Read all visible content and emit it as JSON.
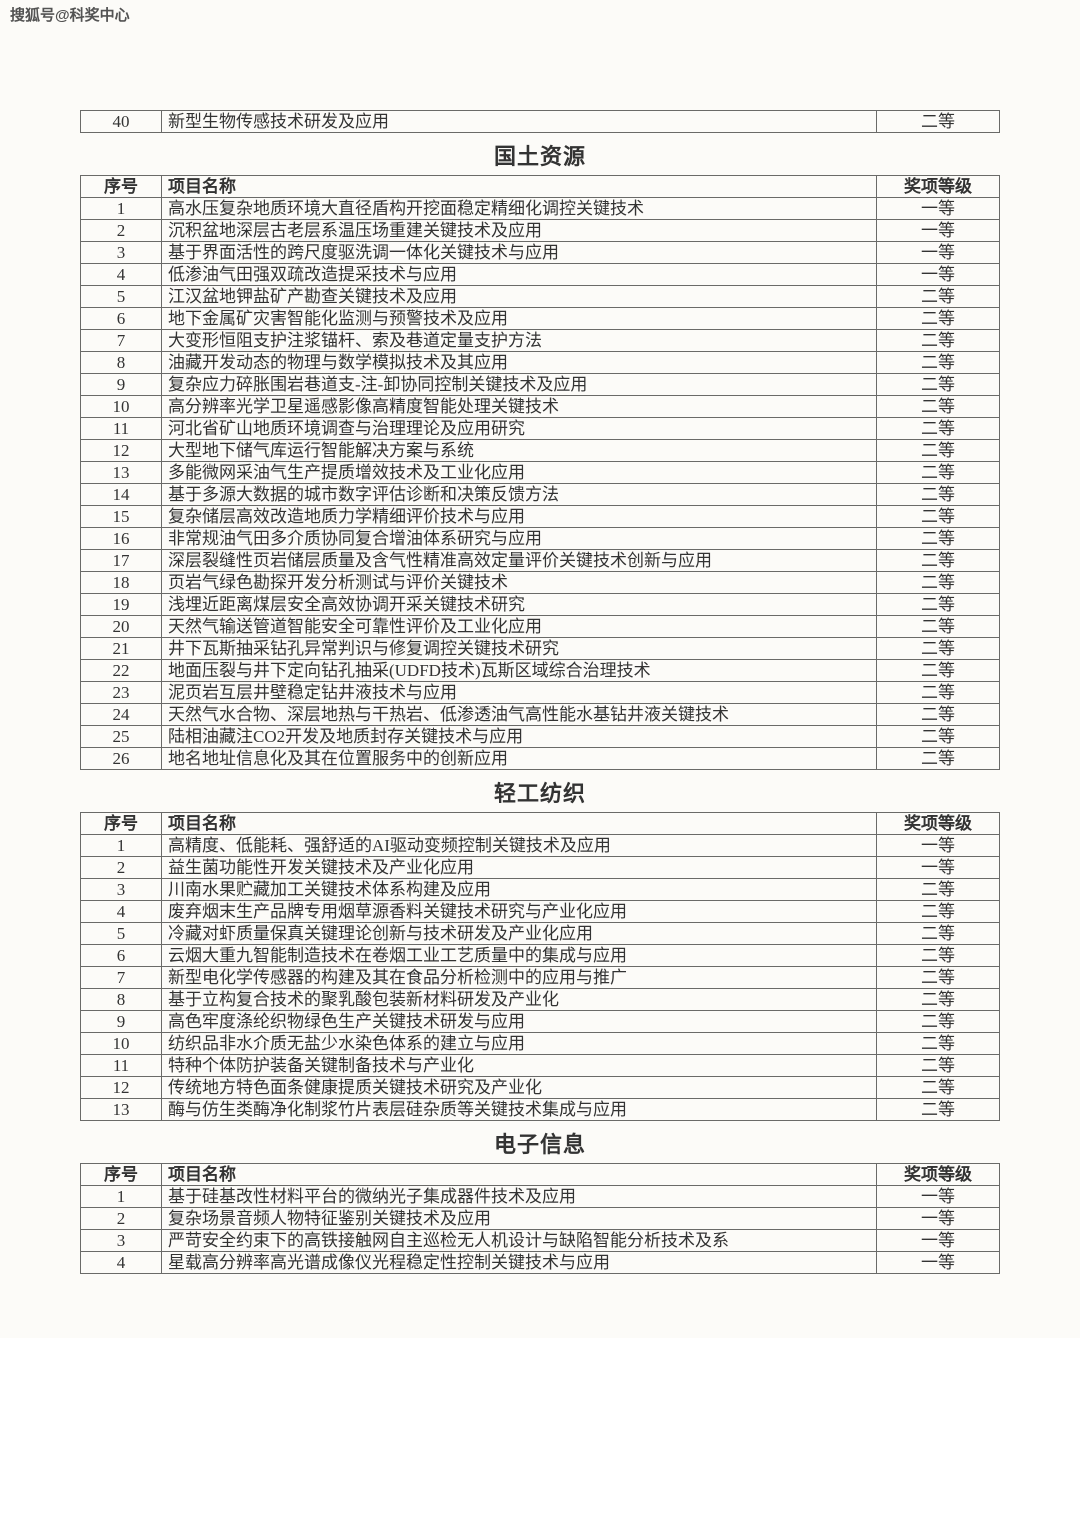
{
  "watermark": "搜狐号@科奖中心",
  "top_row": {
    "num": "40",
    "name": "新型生物传感技术研发及应用",
    "grade": "二等"
  },
  "sections": [
    {
      "title": "国土资源",
      "headers": {
        "num": "序号",
        "name": "项目名称",
        "grade": "奖项等级"
      },
      "rows": [
        {
          "num": "1",
          "name": "高水压复杂地质环境大直径盾构开挖面稳定精细化调控关键技术",
          "grade": "一等"
        },
        {
          "num": "2",
          "name": "沉积盆地深层古老层系温压场重建关键技术及应用",
          "grade": "一等"
        },
        {
          "num": "3",
          "name": "基于界面活性的跨尺度驱洗调一体化关键技术与应用",
          "grade": "一等"
        },
        {
          "num": "4",
          "name": "低渗油气田强双疏改造提采技术与应用",
          "grade": "一等"
        },
        {
          "num": "5",
          "name": "江汉盆地钾盐矿产勘查关键技术及应用",
          "grade": "二等"
        },
        {
          "num": "6",
          "name": "地下金属矿灾害智能化监测与预警技术及应用",
          "grade": "二等"
        },
        {
          "num": "7",
          "name": "大变形恒阻支护注浆锚杆、索及巷道定量支护方法",
          "grade": "二等"
        },
        {
          "num": "8",
          "name": "油藏开发动态的物理与数学模拟技术及其应用",
          "grade": "二等"
        },
        {
          "num": "9",
          "name": "复杂应力碎胀围岩巷道支-注-卸协同控制关键技术及应用",
          "grade": "二等"
        },
        {
          "num": "10",
          "name": "高分辨率光学卫星遥感影像高精度智能处理关键技术",
          "grade": "二等"
        },
        {
          "num": "11",
          "name": "河北省矿山地质环境调查与治理理论及应用研究",
          "grade": "二等"
        },
        {
          "num": "12",
          "name": "大型地下储气库运行智能解决方案与系统",
          "grade": "二等"
        },
        {
          "num": "13",
          "name": "多能微网采油气生产提质增效技术及工业化应用",
          "grade": "二等"
        },
        {
          "num": "14",
          "name": "基于多源大数据的城市数字评估诊断和决策反馈方法",
          "grade": "二等"
        },
        {
          "num": "15",
          "name": "复杂储层高效改造地质力学精细评价技术与应用",
          "grade": "二等"
        },
        {
          "num": "16",
          "name": "非常规油气田多介质协同复合增油体系研究与应用",
          "grade": "二等"
        },
        {
          "num": "17",
          "name": "深层裂缝性页岩储层质量及含气性精准高效定量评价关键技术创新与应用",
          "grade": "二等"
        },
        {
          "num": "18",
          "name": "页岩气绿色勘探开发分析测试与评价关键技术",
          "grade": "二等"
        },
        {
          "num": "19",
          "name": "浅埋近距离煤层安全高效协调开采关键技术研究",
          "grade": "二等"
        },
        {
          "num": "20",
          "name": "天然气输送管道智能安全可靠性评价及工业化应用",
          "grade": "二等"
        },
        {
          "num": "21",
          "name": "井下瓦斯抽采钻孔异常判识与修复调控关键技术研究",
          "grade": "二等"
        },
        {
          "num": "22",
          "name": "地面压裂与井下定向钻孔抽采(UDFD技术)瓦斯区域综合治理技术",
          "grade": "二等"
        },
        {
          "num": "23",
          "name": "泥页岩互层井壁稳定钻井液技术与应用",
          "grade": "二等"
        },
        {
          "num": "24",
          "name": "天然气水合物、深层地热与干热岩、低渗透油气高性能水基钻井液关键技术",
          "grade": "二等"
        },
        {
          "num": "25",
          "name": "陆相油藏注CO2开发及地质封存关键技术与应用",
          "grade": "二等"
        },
        {
          "num": "26",
          "name": "地名地址信息化及其在位置服务中的创新应用",
          "grade": "二等"
        }
      ]
    },
    {
      "title": "轻工纺织",
      "headers": {
        "num": "序号",
        "name": "项目名称",
        "grade": "奖项等级"
      },
      "rows": [
        {
          "num": "1",
          "name": "高精度、低能耗、强舒适的AI驱动变频控制关键技术及应用",
          "grade": "一等"
        },
        {
          "num": "2",
          "name": "益生菌功能性开发关键技术及产业化应用",
          "grade": "一等"
        },
        {
          "num": "3",
          "name": "川南水果贮藏加工关键技术体系构建及应用",
          "grade": "二等"
        },
        {
          "num": "4",
          "name": "废弃烟末生产品牌专用烟草源香料关键技术研究与产业化应用",
          "grade": "二等"
        },
        {
          "num": "5",
          "name": "冷藏对虾质量保真关键理论创新与技术研发及产业化应用",
          "grade": "二等"
        },
        {
          "num": "6",
          "name": "云烟大重九智能制造技术在卷烟工业工艺质量中的集成与应用",
          "grade": "二等"
        },
        {
          "num": "7",
          "name": "新型电化学传感器的构建及其在食品分析检测中的应用与推广",
          "grade": "二等"
        },
        {
          "num": "8",
          "name": "基于立构复合技术的聚乳酸包装新材料研发及产业化",
          "grade": "二等"
        },
        {
          "num": "9",
          "name": "高色牢度涤纶织物绿色生产关键技术研发与应用",
          "grade": "二等"
        },
        {
          "num": "10",
          "name": "纺织品非水介质无盐少水染色体系的建立与应用",
          "grade": "二等"
        },
        {
          "num": "11",
          "name": "特种个体防护装备关键制备技术与产业化",
          "grade": "二等"
        },
        {
          "num": "12",
          "name": "传统地方特色面条健康提质关键技术研究及产业化",
          "grade": "二等"
        },
        {
          "num": "13",
          "name": "酶与仿生类酶净化制浆竹片表层硅杂质等关键技术集成与应用",
          "grade": "二等"
        }
      ]
    },
    {
      "title": "电子信息",
      "headers": {
        "num": "序号",
        "name": "项目名称",
        "grade": "奖项等级"
      },
      "rows": [
        {
          "num": "1",
          "name": "基于硅基改性材料平台的微纳光子集成器件技术及应用",
          "grade": "一等"
        },
        {
          "num": "2",
          "name": "复杂场景音频人物特征鉴别关键技术及应用",
          "grade": "一等"
        },
        {
          "num": "3",
          "name": "严苛安全约束下的高铁接触网自主巡检无人机设计与缺陷智能分析技术及系",
          "grade": "一等"
        },
        {
          "num": "4",
          "name": "星载高分辨率高光谱成像仪光程稳定性控制关键技术与应用",
          "grade": "一等"
        }
      ]
    }
  ]
}
